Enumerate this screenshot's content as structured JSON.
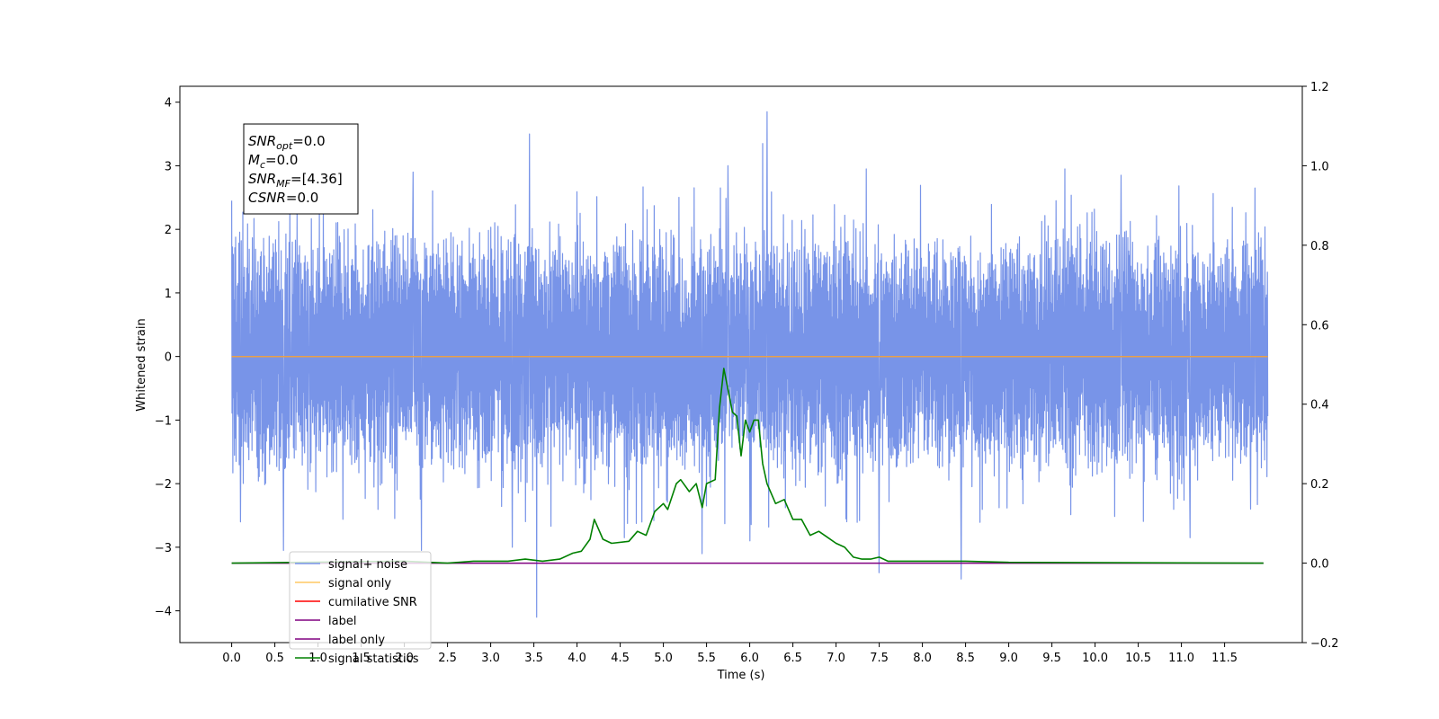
{
  "chart_data": {
    "type": "line",
    "xlabel": "Time (s)",
    "ylabel": "Whitened strain",
    "xlim": [
      -0.6,
      12.4
    ],
    "ylim": [
      -4.5,
      4.25
    ],
    "y2lim": [
      -0.2,
      1.2
    ],
    "x_ticks": [
      0.0,
      0.5,
      1.0,
      1.5,
      2.0,
      2.5,
      3.0,
      3.5,
      4.0,
      4.5,
      5.0,
      5.5,
      6.0,
      6.5,
      7.0,
      7.5,
      8.0,
      8.5,
      9.0,
      9.5,
      10.0,
      10.5,
      11.0,
      11.5
    ],
    "x_tick_labels": [
      "0.0",
      "0.5",
      "1.0",
      "1.5",
      "2.0",
      "2.5",
      "3.0",
      "3.5",
      "4.0",
      "4.5",
      "5.0",
      "5.5",
      "6.0",
      "6.5",
      "7.0",
      "7.5",
      "8.0",
      "8.5",
      "9.0",
      "9.5",
      "10.0",
      "10.5",
      "11.0",
      "11.5"
    ],
    "y_ticks": [
      -4,
      -3,
      -2,
      -1,
      0,
      1,
      2,
      3,
      4
    ],
    "y_tick_labels": [
      "−4",
      "−3",
      "−2",
      "−1",
      "0",
      "1",
      "2",
      "3",
      "4"
    ],
    "y2_ticks": [
      -0.2,
      0.0,
      0.2,
      0.4,
      0.6,
      0.8,
      1.0,
      1.2
    ],
    "y2_tick_labels": [
      "−0.2",
      "0.0",
      "0.2",
      "0.4",
      "0.6",
      "0.8",
      "1.0",
      "1.2"
    ],
    "grid": false,
    "legend_position": "bottom-left",
    "legend": [
      {
        "label": "signal+ noise",
        "color": "#7894e8"
      },
      {
        "label": "signal only",
        "color": "#ffc864"
      },
      {
        "label": "cumilative SNR",
        "color": "#ff0000"
      },
      {
        "label": "label",
        "color": "#800080"
      },
      {
        "label": "label only",
        "color": "#800080"
      },
      {
        "label": "signal statistics",
        "color": "#008000"
      }
    ],
    "annotation": [
      {
        "name": "SNR",
        "sub": "opt",
        "value": "=0.0"
      },
      {
        "name": "M",
        "sub": "c",
        "value": "=0.0"
      },
      {
        "name": "SNR",
        "sub": "MF",
        "value": "=[4.36]"
      },
      {
        "name": "CSNR",
        "sub": "",
        "value": "=0.0"
      }
    ],
    "series": [
      {
        "name": "signal+ noise",
        "axis": "left",
        "color": "#7894e8",
        "x_range": [
          0.0,
          12.0
        ],
        "envelope_typical": [
          -1.5,
          1.6
        ],
        "peaks": [
          {
            "x": 0.0,
            "y": 2.45
          },
          {
            "x": 0.05,
            "y": -1.65
          },
          {
            "x": 0.1,
            "y": -2.6
          },
          {
            "x": 0.6,
            "y": -3.05
          },
          {
            "x": 2.1,
            "y": 2.9
          },
          {
            "x": 2.2,
            "y": -3.05
          },
          {
            "x": 3.25,
            "y": -3.0
          },
          {
            "x": 3.45,
            "y": 3.5
          },
          {
            "x": 3.53,
            "y": -4.1
          },
          {
            "x": 4.55,
            "y": -2.85
          },
          {
            "x": 5.45,
            "y": -3.1
          },
          {
            "x": 5.75,
            "y": 3.0
          },
          {
            "x": 6.2,
            "y": 3.85
          },
          {
            "x": 6.15,
            "y": 3.35
          },
          {
            "x": 6.0,
            "y": -2.9
          },
          {
            "x": 7.5,
            "y": -3.4
          },
          {
            "x": 7.35,
            "y": 2.95
          },
          {
            "x": 8.45,
            "y": -3.5
          },
          {
            "x": 9.65,
            "y": 2.95
          },
          {
            "x": 10.3,
            "y": 2.85
          },
          {
            "x": 11.1,
            "y": -2.85
          },
          {
            "x": 11.85,
            "y": 2.65
          },
          {
            "x": 11.8,
            "y": -2.4
          }
        ]
      },
      {
        "name": "signal only",
        "axis": "left",
        "color": "#e8a04a",
        "x": [
          0.0,
          12.0
        ],
        "y": [
          0.0,
          0.0
        ]
      },
      {
        "name": "label",
        "axis": "right",
        "color": "#800080",
        "x": [
          0.0,
          11.95
        ],
        "y": [
          0.0,
          0.0
        ]
      },
      {
        "name": "signal statistics",
        "axis": "right",
        "color": "#008000",
        "x": [
          0.0,
          2.0,
          2.5,
          2.8,
          3.2,
          3.4,
          3.6,
          3.8,
          3.95,
          4.05,
          4.15,
          4.2,
          4.3,
          4.4,
          4.6,
          4.7,
          4.8,
          4.9,
          5.0,
          5.05,
          5.15,
          5.2,
          5.3,
          5.38,
          5.45,
          5.5,
          5.6,
          5.65,
          5.7,
          5.8,
          5.85,
          5.9,
          5.95,
          6.0,
          6.05,
          6.1,
          6.15,
          6.2,
          6.3,
          6.4,
          6.5,
          6.6,
          6.7,
          6.8,
          6.9,
          7.0,
          7.1,
          7.2,
          7.3,
          7.4,
          7.5,
          7.6,
          7.8,
          8.0,
          8.5,
          9.0,
          11.95
        ],
        "y": [
          0.0,
          0.005,
          0.0,
          0.005,
          0.005,
          0.01,
          0.005,
          0.01,
          0.025,
          0.03,
          0.06,
          0.11,
          0.06,
          0.05,
          0.055,
          0.08,
          0.07,
          0.13,
          0.15,
          0.135,
          0.2,
          0.21,
          0.18,
          0.2,
          0.14,
          0.2,
          0.21,
          0.39,
          0.49,
          0.38,
          0.37,
          0.27,
          0.36,
          0.33,
          0.36,
          0.36,
          0.25,
          0.2,
          0.15,
          0.16,
          0.11,
          0.11,
          0.07,
          0.08,
          0.065,
          0.05,
          0.04,
          0.015,
          0.01,
          0.01,
          0.015,
          0.005,
          0.005,
          0.005,
          0.005,
          0.002,
          0.0
        ]
      }
    ]
  }
}
